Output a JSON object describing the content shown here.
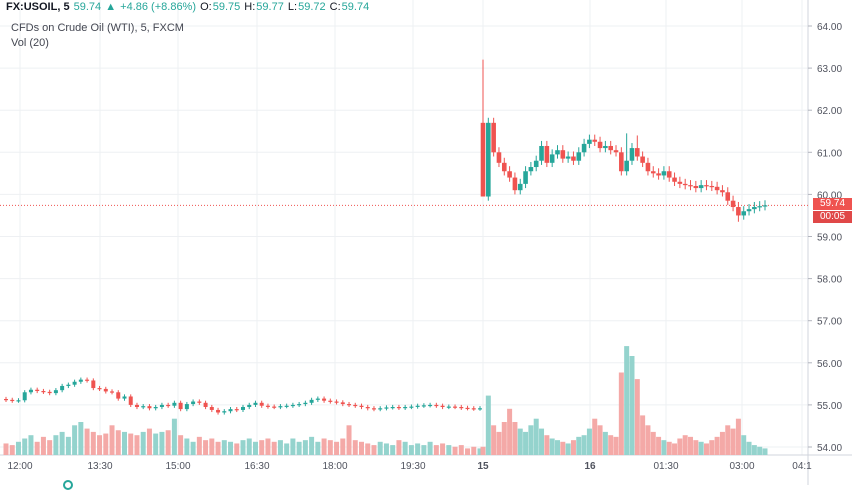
{
  "header": {
    "symbol": "FX:USOIL, 5",
    "last": "59.74",
    "arrow": "▲",
    "change": "+4.86 (+8.86%)",
    "o_label": "O:",
    "o_val": "59.75",
    "h_label": "H:",
    "h_val": "59.77",
    "l_label": "L:",
    "l_val": "59.72",
    "c_label": "C:",
    "c_val": "59.74",
    "description": "CFDs on Crude Oil (WTI), 5, FXCM",
    "volume_label": "Vol (20)"
  },
  "price_tag": "59.74",
  "countdown_tag": "00:05",
  "colors": {
    "up": "#26a69a",
    "down": "#ef5350",
    "up_vol": "#94d3cd",
    "down_vol": "#f4a9a7",
    "grid": "#eef0f3"
  },
  "chart_data": {
    "type": "candlestick",
    "symbol": "FX:USOIL",
    "interval": "5",
    "y_ticks": [
      "64.00",
      "63.00",
      "62.00",
      "61.00",
      "60.00",
      "59.00",
      "58.00",
      "57.00",
      "56.00",
      "55.00",
      "54.00"
    ],
    "ylim": [
      53.85,
      64.3
    ],
    "x_ticks": [
      "12:00",
      "13:30",
      "15:00",
      "16:30",
      "18:00",
      "19:30",
      "15",
      "16",
      "01:30",
      "03:00",
      "04:1"
    ],
    "last_price": 59.74,
    "session_pre_gap": {
      "note_value_scale": "same price axis",
      "closes": [
        55.12,
        55.1,
        55.11,
        55.3,
        55.36,
        55.33,
        55.31,
        55.28,
        55.35,
        55.45,
        55.48,
        55.55,
        55.6,
        55.58,
        55.4,
        55.38,
        55.32,
        55.3,
        55.15,
        55.2,
        55.0,
        54.95,
        54.97,
        54.92,
        54.95,
        55.0,
        54.98,
        55.05,
        54.9,
        55.02,
        55.08,
        55.05,
        54.95,
        54.88,
        54.82,
        54.85,
        54.9,
        54.88,
        54.95,
        55.0,
        55.05,
        54.98,
        54.96,
        54.95,
        54.97,
        54.98,
        55.0,
        55.02,
        55.05,
        55.12,
        55.15,
        55.1,
        55.08,
        55.06,
        55.02,
        55.0,
        54.98,
        54.95,
        54.92,
        54.9,
        54.92,
        54.94,
        54.95,
        54.93,
        54.95,
        54.96,
        54.98,
        54.99,
        55.0,
        54.98,
        54.95,
        54.96,
        54.95,
        54.93,
        54.92,
        54.91,
        54.92
      ],
      "volumes": [
        0.35,
        0.3,
        0.4,
        0.5,
        0.6,
        0.4,
        0.55,
        0.45,
        0.6,
        0.7,
        0.55,
        0.9,
        1.0,
        0.8,
        0.7,
        0.6,
        0.65,
        0.9,
        0.75,
        0.7,
        0.65,
        0.6,
        0.7,
        0.8,
        0.65,
        0.7,
        0.75,
        1.1,
        0.6,
        0.5,
        0.4,
        0.55,
        0.45,
        0.5,
        0.4,
        0.45,
        0.4,
        0.35,
        0.45,
        0.5,
        0.4,
        0.45,
        0.5,
        0.4,
        0.45,
        0.35,
        0.5,
        0.4,
        0.45,
        0.55,
        0.4,
        0.5,
        0.45,
        0.4,
        0.5,
        0.9,
        0.45,
        0.4,
        0.35,
        0.3,
        0.4,
        0.35,
        0.3,
        0.45,
        0.4,
        0.3,
        0.35,
        0.3,
        0.4,
        0.3,
        0.35,
        0.3,
        0.25,
        0.3,
        0.2,
        0.25,
        0.2
      ]
    },
    "session_post_gap": {
      "open": 61.7,
      "closes": [
        59.95,
        61.7,
        61.0,
        60.75,
        60.55,
        60.4,
        60.1,
        60.25,
        60.55,
        60.65,
        60.8,
        61.15,
        60.75,
        60.95,
        61.05,
        60.85,
        60.9,
        60.8,
        61.0,
        61.2,
        61.3,
        61.25,
        61.1,
        61.15,
        61.05,
        61.0,
        60.55,
        60.8,
        61.1,
        60.9,
        60.75,
        60.55,
        60.5,
        60.45,
        60.55,
        60.4,
        60.3,
        60.25,
        60.22,
        60.2,
        60.15,
        60.22,
        60.2,
        60.18,
        60.1,
        60.05,
        59.85,
        59.7,
        59.5,
        59.6,
        59.65,
        59.7,
        59.72,
        59.74
      ],
      "volumes": [
        0.25,
        1.8,
        0.9,
        0.7,
        1.0,
        1.4,
        1.0,
        0.8,
        0.7,
        0.9,
        1.1,
        0.8,
        0.6,
        0.5,
        0.45,
        0.4,
        0.35,
        0.45,
        0.55,
        0.6,
        0.8,
        1.1,
        0.9,
        0.7,
        0.6,
        0.55,
        2.5,
        3.3,
        3.0,
        2.3,
        1.2,
        0.9,
        0.7,
        0.55,
        0.45,
        0.4,
        0.35,
        0.5,
        0.6,
        0.55,
        0.45,
        0.4,
        0.35,
        0.45,
        0.55,
        0.7,
        0.9,
        0.8,
        1.1,
        0.6,
        0.4,
        0.3,
        0.25,
        0.2
      ]
    }
  }
}
